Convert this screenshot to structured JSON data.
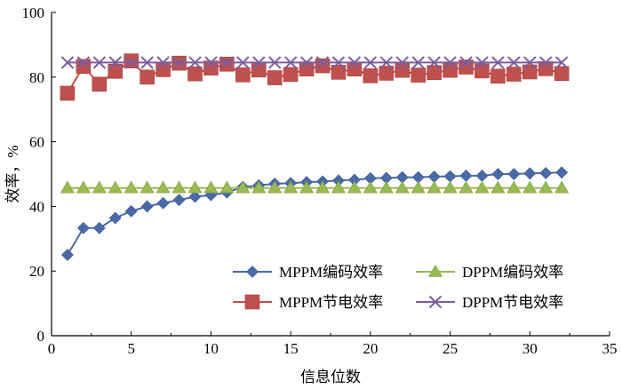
{
  "chart_data": {
    "type": "line",
    "xlabel": "信息位数",
    "ylabel": "效率，%",
    "xlim": [
      0,
      35
    ],
    "ylim": [
      0,
      100
    ],
    "xticks": [
      0,
      5,
      10,
      15,
      20,
      25,
      30,
      35
    ],
    "yticks": [
      20,
      40,
      60,
      80,
      100
    ],
    "x": [
      1,
      2,
      3,
      4,
      5,
      6,
      7,
      8,
      9,
      10,
      11,
      12,
      13,
      14,
      15,
      16,
      17,
      18,
      19,
      20,
      21,
      22,
      23,
      24,
      25,
      26,
      27,
      28,
      29,
      30,
      31,
      32
    ],
    "grid": false,
    "legend_position": "bottom-right",
    "series": [
      {
        "name": "MPPM编码效率",
        "color": "#4a6aa5",
        "marker": "diamond",
        "values": [
          25,
          33.3,
          33.3,
          36.4,
          38.5,
          40,
          41,
          42,
          43,
          43.5,
          44.3,
          46,
          46.5,
          47,
          47.2,
          47.5,
          47.7,
          48,
          48.2,
          48.7,
          48.8,
          49,
          49,
          49.2,
          49.3,
          49.5,
          49.5,
          50,
          50,
          50.2,
          50.3,
          50.5
        ]
      },
      {
        "name": "DPPM编码效率",
        "color": "#98b954",
        "marker": "triangle",
        "values": [
          45.7,
          45.7,
          45.7,
          45.7,
          45.7,
          45.7,
          45.7,
          45.7,
          45.7,
          45.7,
          45.7,
          45.7,
          45.7,
          45.7,
          45.7,
          45.7,
          45.7,
          45.7,
          45.7,
          45.7,
          45.7,
          45.7,
          45.7,
          45.7,
          45.7,
          45.7,
          45.7,
          45.7,
          45.7,
          45.7,
          45.7,
          45.7
        ]
      },
      {
        "name": "MPPM节电效率",
        "color": "#c0504d",
        "marker": "square",
        "values": [
          75,
          83.3,
          77.8,
          81.8,
          85,
          80,
          82.3,
          84.3,
          81,
          82.8,
          84,
          80.7,
          82.2,
          79.8,
          80.8,
          82.5,
          83.5,
          81.5,
          82.5,
          80.4,
          81.2,
          82.1,
          80.6,
          81.4,
          82.1,
          83.1,
          81.9,
          80.3,
          80.9,
          81.6,
          82.6,
          81.1
        ]
      },
      {
        "name": "DPPM节电效率",
        "color": "#7e5c9e",
        "marker": "x",
        "values": [
          84.5,
          84.5,
          84.5,
          84.5,
          84.5,
          84.5,
          84.5,
          84.5,
          84.5,
          84.5,
          84.5,
          84.5,
          84.5,
          84.5,
          84.5,
          84.5,
          84.5,
          84.5,
          84.5,
          84.5,
          84.5,
          84.5,
          84.5,
          84.5,
          84.5,
          84.5,
          84.5,
          84.5,
          84.5,
          84.5,
          84.5,
          84.5
        ]
      }
    ]
  }
}
